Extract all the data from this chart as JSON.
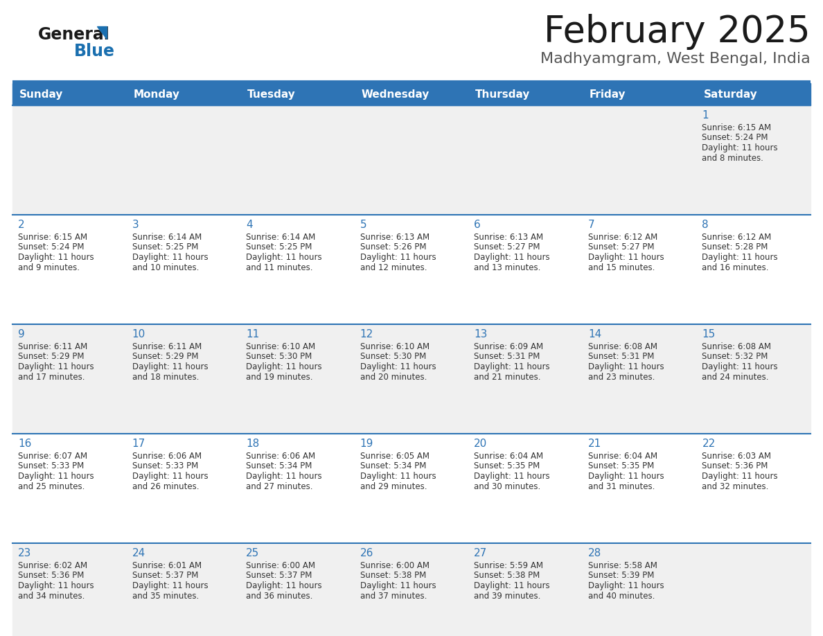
{
  "title": "February 2025",
  "subtitle": "Madhyamgram, West Bengal, India",
  "header_bg": "#2E74B5",
  "header_text_color": "#FFFFFF",
  "cell_bg_odd": "#F0F0F0",
  "cell_bg_even": "#FFFFFF",
  "border_color": "#2E74B5",
  "day_number_color": "#2E74B5",
  "text_color": "#333333",
  "days_of_week": [
    "Sunday",
    "Monday",
    "Tuesday",
    "Wednesday",
    "Thursday",
    "Friday",
    "Saturday"
  ],
  "calendar_data": [
    [
      {
        "day": null,
        "sunrise": null,
        "sunset": null,
        "daylight_line1": null,
        "daylight_line2": null
      },
      {
        "day": null,
        "sunrise": null,
        "sunset": null,
        "daylight_line1": null,
        "daylight_line2": null
      },
      {
        "day": null,
        "sunrise": null,
        "sunset": null,
        "daylight_line1": null,
        "daylight_line2": null
      },
      {
        "day": null,
        "sunrise": null,
        "sunset": null,
        "daylight_line1": null,
        "daylight_line2": null
      },
      {
        "day": null,
        "sunrise": null,
        "sunset": null,
        "daylight_line1": null,
        "daylight_line2": null
      },
      {
        "day": null,
        "sunrise": null,
        "sunset": null,
        "daylight_line1": null,
        "daylight_line2": null
      },
      {
        "day": 1,
        "sunrise": "6:15 AM",
        "sunset": "5:24 PM",
        "daylight_line1": "Daylight: 11 hours",
        "daylight_line2": "and 8 minutes."
      }
    ],
    [
      {
        "day": 2,
        "sunrise": "6:15 AM",
        "sunset": "5:24 PM",
        "daylight_line1": "Daylight: 11 hours",
        "daylight_line2": "and 9 minutes."
      },
      {
        "day": 3,
        "sunrise": "6:14 AM",
        "sunset": "5:25 PM",
        "daylight_line1": "Daylight: 11 hours",
        "daylight_line2": "and 10 minutes."
      },
      {
        "day": 4,
        "sunrise": "6:14 AM",
        "sunset": "5:25 PM",
        "daylight_line1": "Daylight: 11 hours",
        "daylight_line2": "and 11 minutes."
      },
      {
        "day": 5,
        "sunrise": "6:13 AM",
        "sunset": "5:26 PM",
        "daylight_line1": "Daylight: 11 hours",
        "daylight_line2": "and 12 minutes."
      },
      {
        "day": 6,
        "sunrise": "6:13 AM",
        "sunset": "5:27 PM",
        "daylight_line1": "Daylight: 11 hours",
        "daylight_line2": "and 13 minutes."
      },
      {
        "day": 7,
        "sunrise": "6:12 AM",
        "sunset": "5:27 PM",
        "daylight_line1": "Daylight: 11 hours",
        "daylight_line2": "and 15 minutes."
      },
      {
        "day": 8,
        "sunrise": "6:12 AM",
        "sunset": "5:28 PM",
        "daylight_line1": "Daylight: 11 hours",
        "daylight_line2": "and 16 minutes."
      }
    ],
    [
      {
        "day": 9,
        "sunrise": "6:11 AM",
        "sunset": "5:29 PM",
        "daylight_line1": "Daylight: 11 hours",
        "daylight_line2": "and 17 minutes."
      },
      {
        "day": 10,
        "sunrise": "6:11 AM",
        "sunset": "5:29 PM",
        "daylight_line1": "Daylight: 11 hours",
        "daylight_line2": "and 18 minutes."
      },
      {
        "day": 11,
        "sunrise": "6:10 AM",
        "sunset": "5:30 PM",
        "daylight_line1": "Daylight: 11 hours",
        "daylight_line2": "and 19 minutes."
      },
      {
        "day": 12,
        "sunrise": "6:10 AM",
        "sunset": "5:30 PM",
        "daylight_line1": "Daylight: 11 hours",
        "daylight_line2": "and 20 minutes."
      },
      {
        "day": 13,
        "sunrise": "6:09 AM",
        "sunset": "5:31 PM",
        "daylight_line1": "Daylight: 11 hours",
        "daylight_line2": "and 21 minutes."
      },
      {
        "day": 14,
        "sunrise": "6:08 AM",
        "sunset": "5:31 PM",
        "daylight_line1": "Daylight: 11 hours",
        "daylight_line2": "and 23 minutes."
      },
      {
        "day": 15,
        "sunrise": "6:08 AM",
        "sunset": "5:32 PM",
        "daylight_line1": "Daylight: 11 hours",
        "daylight_line2": "and 24 minutes."
      }
    ],
    [
      {
        "day": 16,
        "sunrise": "6:07 AM",
        "sunset": "5:33 PM",
        "daylight_line1": "Daylight: 11 hours",
        "daylight_line2": "and 25 minutes."
      },
      {
        "day": 17,
        "sunrise": "6:06 AM",
        "sunset": "5:33 PM",
        "daylight_line1": "Daylight: 11 hours",
        "daylight_line2": "and 26 minutes."
      },
      {
        "day": 18,
        "sunrise": "6:06 AM",
        "sunset": "5:34 PM",
        "daylight_line1": "Daylight: 11 hours",
        "daylight_line2": "and 27 minutes."
      },
      {
        "day": 19,
        "sunrise": "6:05 AM",
        "sunset": "5:34 PM",
        "daylight_line1": "Daylight: 11 hours",
        "daylight_line2": "and 29 minutes."
      },
      {
        "day": 20,
        "sunrise": "6:04 AM",
        "sunset": "5:35 PM",
        "daylight_line1": "Daylight: 11 hours",
        "daylight_line2": "and 30 minutes."
      },
      {
        "day": 21,
        "sunrise": "6:04 AM",
        "sunset": "5:35 PM",
        "daylight_line1": "Daylight: 11 hours",
        "daylight_line2": "and 31 minutes."
      },
      {
        "day": 22,
        "sunrise": "6:03 AM",
        "sunset": "5:36 PM",
        "daylight_line1": "Daylight: 11 hours",
        "daylight_line2": "and 32 minutes."
      }
    ],
    [
      {
        "day": 23,
        "sunrise": "6:02 AM",
        "sunset": "5:36 PM",
        "daylight_line1": "Daylight: 11 hours",
        "daylight_line2": "and 34 minutes."
      },
      {
        "day": 24,
        "sunrise": "6:01 AM",
        "sunset": "5:37 PM",
        "daylight_line1": "Daylight: 11 hours",
        "daylight_line2": "and 35 minutes."
      },
      {
        "day": 25,
        "sunrise": "6:00 AM",
        "sunset": "5:37 PM",
        "daylight_line1": "Daylight: 11 hours",
        "daylight_line2": "and 36 minutes."
      },
      {
        "day": 26,
        "sunrise": "6:00 AM",
        "sunset": "5:38 PM",
        "daylight_line1": "Daylight: 11 hours",
        "daylight_line2": "and 37 minutes."
      },
      {
        "day": 27,
        "sunrise": "5:59 AM",
        "sunset": "5:38 PM",
        "daylight_line1": "Daylight: 11 hours",
        "daylight_line2": "and 39 minutes."
      },
      {
        "day": 28,
        "sunrise": "5:58 AM",
        "sunset": "5:39 PM",
        "daylight_line1": "Daylight: 11 hours",
        "daylight_line2": "and 40 minutes."
      },
      {
        "day": null,
        "sunrise": null,
        "sunset": null,
        "daylight_line1": null,
        "daylight_line2": null
      }
    ]
  ],
  "logo_color_general": "#1a1a1a",
  "logo_color_blue": "#1a6faf",
  "title_color": "#1a1a1a",
  "subtitle_color": "#555555",
  "title_fontsize": 38,
  "subtitle_fontsize": 16,
  "header_fontsize": 11,
  "day_num_fontsize": 11,
  "cell_text_fontsize": 8.5
}
